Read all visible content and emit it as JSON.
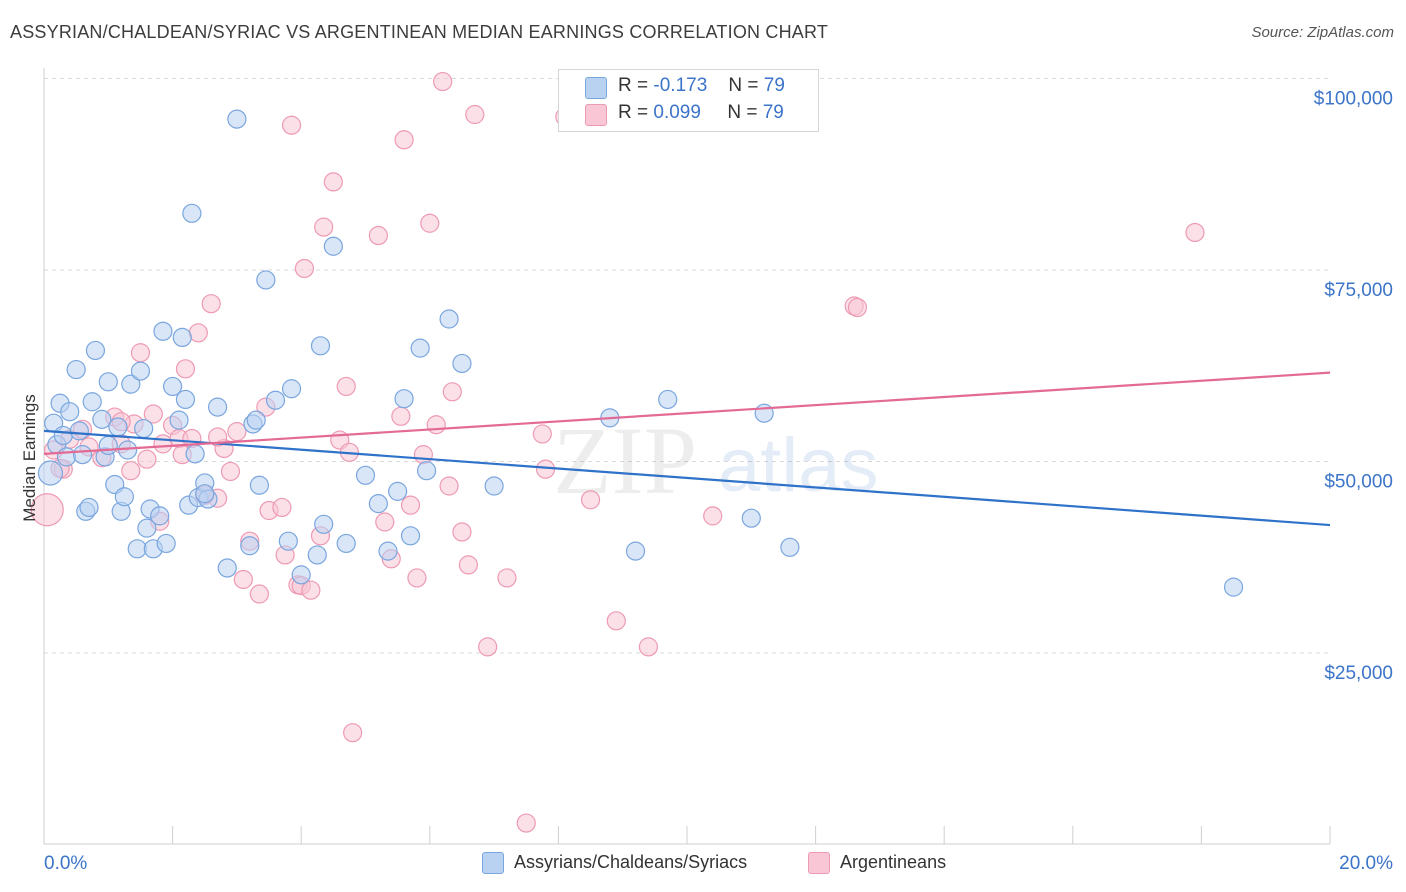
{
  "header": {
    "title": "ASSYRIAN/CHALDEAN/SYRIAC VS ARGENTINEAN MEDIAN EARNINGS CORRELATION CHART",
    "source": "Source: ZipAtlas.com"
  },
  "legend": {
    "rows": [
      {
        "r_label": "R =",
        "r_value": "-0.173",
        "n_label": "N =",
        "n_value": "79"
      },
      {
        "r_label": "R =",
        "r_value": "0.099",
        "n_label": "N =",
        "n_value": "79"
      }
    ],
    "bottom": [
      "Assyrians/Chaldeans/Syriacs",
      "Argentineans"
    ]
  },
  "watermark": {
    "zip": "ZIP",
    "atlas": "atlas"
  },
  "colors": {
    "blue_fill": "#b9d2f2",
    "blue_stroke": "#7aa6de",
    "blue_line": "#2f72c9",
    "pink_fill": "#f8c6d5",
    "pink_stroke": "#ee9ab3",
    "pink_line": "#e36a95",
    "axis_text": "#3b74c9",
    "grid": "#d9d9d9"
  },
  "chart_data": {
    "type": "scatter",
    "title": "ASSYRIAN/CHALDEAN/SYRIAC VS ARGENTINEAN MEDIAN EARNINGS CORRELATION CHART",
    "xlabel": "",
    "ylabel": "Median Earnings",
    "xlim": [
      0,
      20
    ],
    "ylim": [
      0,
      105000
    ],
    "x_tick_labels": [
      "0.0%",
      "20.0%"
    ],
    "y_ticks": [
      25000,
      50000,
      75000,
      100000
    ],
    "y_tick_labels": [
      "$25,000",
      "$50,000",
      "$75,000",
      "$100,000"
    ],
    "grid": true,
    "legend_position": "top-center",
    "series": [
      {
        "name": "Assyrians/Chaldeans/Syriacs",
        "R": -0.173,
        "N": 79,
        "trend": {
          "x": [
            0,
            20
          ],
          "y": [
            54000,
            41700
          ]
        },
        "points": [
          [
            0.1,
            48500
          ],
          [
            0.15,
            55000
          ],
          [
            0.2,
            52200
          ],
          [
            0.25,
            57600
          ],
          [
            0.3,
            53400
          ],
          [
            0.35,
            50600
          ],
          [
            0.4,
            56500
          ],
          [
            0.5,
            62000
          ],
          [
            0.55,
            54000
          ],
          [
            0.65,
            43500
          ],
          [
            0.7,
            44000
          ],
          [
            0.75,
            57800
          ],
          [
            0.8,
            64500
          ],
          [
            0.9,
            55500
          ],
          [
            0.95,
            50600
          ],
          [
            1.0,
            60400
          ],
          [
            1.1,
            47000
          ],
          [
            1.15,
            54500
          ],
          [
            1.2,
            43500
          ],
          [
            1.25,
            45400
          ],
          [
            1.3,
            51500
          ],
          [
            1.35,
            60100
          ],
          [
            1.45,
            38600
          ],
          [
            1.5,
            61800
          ],
          [
            1.55,
            54300
          ],
          [
            1.6,
            41300
          ],
          [
            1.65,
            43800
          ],
          [
            1.7,
            38600
          ],
          [
            1.8,
            42900
          ],
          [
            1.85,
            67000
          ],
          [
            1.9,
            39300
          ],
          [
            2.0,
            59800
          ],
          [
            2.1,
            55400
          ],
          [
            2.15,
            66200
          ],
          [
            2.2,
            58100
          ],
          [
            2.25,
            44300
          ],
          [
            2.3,
            82400
          ],
          [
            2.35,
            51000
          ],
          [
            2.4,
            45300
          ],
          [
            2.5,
            47200
          ],
          [
            2.55,
            45100
          ],
          [
            2.7,
            57100
          ],
          [
            2.85,
            36100
          ],
          [
            3.0,
            94700
          ],
          [
            3.2,
            39000
          ],
          [
            3.25,
            54900
          ],
          [
            3.35,
            46900
          ],
          [
            3.45,
            73700
          ],
          [
            3.6,
            58000
          ],
          [
            3.8,
            39600
          ],
          [
            3.85,
            59500
          ],
          [
            4.0,
            35200
          ],
          [
            4.25,
            37800
          ],
          [
            4.3,
            65100
          ],
          [
            4.35,
            41800
          ],
          [
            4.5,
            78100
          ],
          [
            4.7,
            39300
          ],
          [
            5.0,
            48200
          ],
          [
            5.2,
            44500
          ],
          [
            5.35,
            38300
          ],
          [
            5.5,
            46100
          ],
          [
            5.6,
            58200
          ],
          [
            5.7,
            40300
          ],
          [
            5.85,
            64800
          ],
          [
            5.95,
            48800
          ],
          [
            6.3,
            68600
          ],
          [
            6.5,
            62800
          ],
          [
            7.0,
            46800
          ],
          [
            8.8,
            55700
          ],
          [
            9.2,
            38300
          ],
          [
            9.7,
            58100
          ],
          [
            11.0,
            42600
          ],
          [
            11.2,
            56300
          ],
          [
            11.6,
            38800
          ],
          [
            18.5,
            33600
          ],
          [
            3.3,
            55400
          ],
          [
            2.5,
            45800
          ],
          [
            1.0,
            52100
          ],
          [
            0.6,
            50900
          ]
        ]
      },
      {
        "name": "Argentineans",
        "R": 0.099,
        "N": 79,
        "trend": {
          "x": [
            0,
            20
          ],
          "y": [
            51000,
            61600
          ]
        },
        "points": [
          [
            0.05,
            43700
          ],
          [
            0.15,
            51500
          ],
          [
            0.3,
            49000
          ],
          [
            0.4,
            52900
          ],
          [
            0.6,
            54200
          ],
          [
            0.7,
            51900
          ],
          [
            0.9,
            50500
          ],
          [
            1.1,
            55800
          ],
          [
            1.2,
            52300
          ],
          [
            1.35,
            48800
          ],
          [
            1.4,
            54900
          ],
          [
            1.5,
            64200
          ],
          [
            1.6,
            50300
          ],
          [
            1.7,
            56200
          ],
          [
            1.8,
            42200
          ],
          [
            1.85,
            52300
          ],
          [
            2.0,
            54700
          ],
          [
            2.1,
            53000
          ],
          [
            2.15,
            50900
          ],
          [
            2.2,
            62100
          ],
          [
            2.3,
            53000
          ],
          [
            2.4,
            66800
          ],
          [
            2.5,
            45600
          ],
          [
            2.6,
            70600
          ],
          [
            2.7,
            45200
          ],
          [
            2.8,
            51700
          ],
          [
            2.9,
            48700
          ],
          [
            3.0,
            53900
          ],
          [
            3.1,
            34600
          ],
          [
            3.2,
            39600
          ],
          [
            3.35,
            32700
          ],
          [
            3.45,
            57100
          ],
          [
            3.5,
            43600
          ],
          [
            3.7,
            44000
          ],
          [
            3.75,
            37800
          ],
          [
            3.85,
            93900
          ],
          [
            3.95,
            33900
          ],
          [
            4.0,
            33800
          ],
          [
            4.05,
            75200
          ],
          [
            4.15,
            33200
          ],
          [
            4.3,
            40300
          ],
          [
            4.35,
            80600
          ],
          [
            4.5,
            86500
          ],
          [
            4.6,
            52800
          ],
          [
            4.7,
            59800
          ],
          [
            4.75,
            51200
          ],
          [
            4.8,
            14600
          ],
          [
            5.2,
            79500
          ],
          [
            5.3,
            42100
          ],
          [
            5.4,
            37300
          ],
          [
            5.55,
            55900
          ],
          [
            5.6,
            92000
          ],
          [
            5.7,
            44300
          ],
          [
            5.8,
            34800
          ],
          [
            5.9,
            50900
          ],
          [
            6.0,
            81100
          ],
          [
            6.1,
            54800
          ],
          [
            6.2,
            99600
          ],
          [
            6.3,
            46800
          ],
          [
            6.35,
            59100
          ],
          [
            6.5,
            40800
          ],
          [
            6.6,
            36500
          ],
          [
            6.7,
            95300
          ],
          [
            6.9,
            25800
          ],
          [
            7.2,
            34800
          ],
          [
            7.5,
            2800
          ],
          [
            7.75,
            53600
          ],
          [
            7.8,
            49000
          ],
          [
            8.1,
            95000
          ],
          [
            8.5,
            45000
          ],
          [
            8.9,
            29200
          ],
          [
            9.4,
            25800
          ],
          [
            10.4,
            42900
          ],
          [
            12.6,
            70300
          ],
          [
            12.65,
            70100
          ],
          [
            17.9,
            79900
          ],
          [
            2.7,
            53200
          ],
          [
            1.2,
            55200
          ],
          [
            0.25,
            49100
          ]
        ]
      }
    ]
  }
}
